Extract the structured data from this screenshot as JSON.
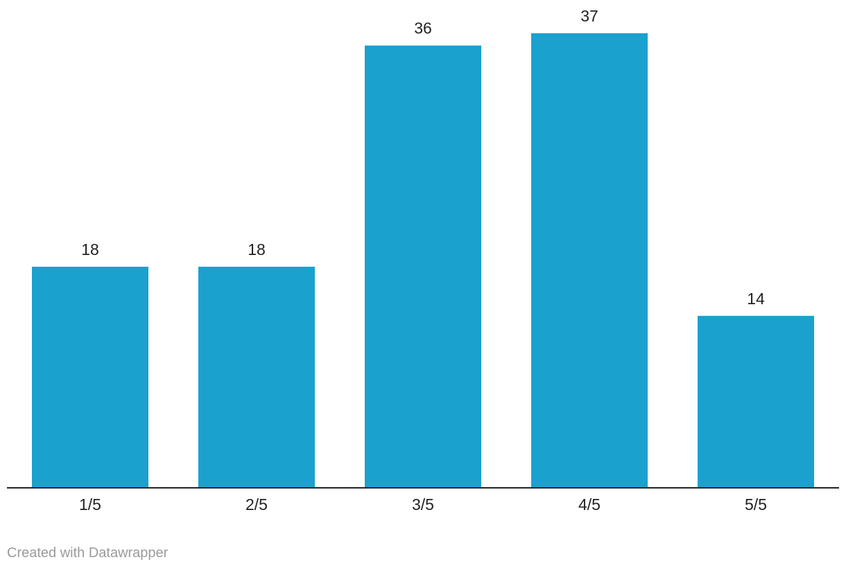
{
  "chart_data": {
    "type": "bar",
    "title": "",
    "xlabel": "",
    "ylabel": "",
    "categories": [
      "1/5",
      "2/5",
      "3/5",
      "4/5",
      "5/5"
    ],
    "values": [
      18,
      18,
      36,
      37,
      14
    ],
    "value_labels": [
      "18",
      "18",
      "36",
      "37",
      "14"
    ],
    "ylim": [
      0,
      37
    ],
    "grid": false,
    "legend": "none",
    "bar_color": "#1aa1ce",
    "axis_color": "#222222"
  },
  "footer": {
    "credit": "Created with Datawrapper"
  }
}
